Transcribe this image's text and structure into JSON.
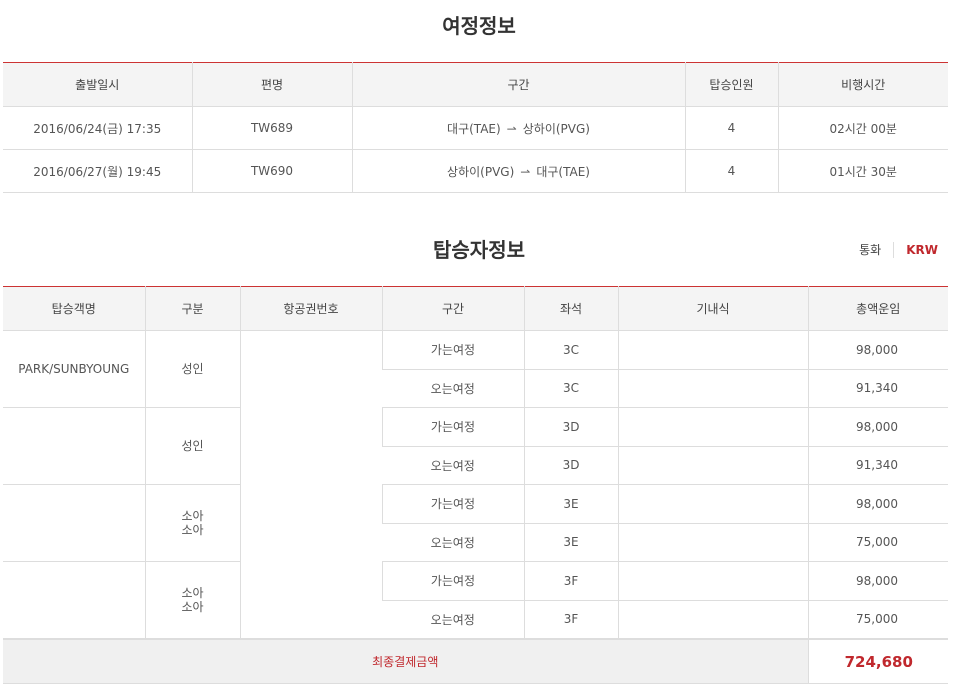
{
  "itinerary": {
    "title": "여정정보",
    "headers": [
      "출발일시",
      "편명",
      "구간",
      "탑승인원",
      "비행시간"
    ],
    "rows": [
      {
        "datetime": "2016/06/24(금) 17:35",
        "flight": "TW689",
        "from": "대구(TAE)",
        "to": "상하이(PVG)",
        "pax": "4",
        "duration": "02시간 00분"
      },
      {
        "datetime": "2016/06/27(월) 19:45",
        "flight": "TW690",
        "from": "상하이(PVG)",
        "to": "대구(TAE)",
        "pax": "4",
        "duration": "01시간 30분"
      }
    ]
  },
  "passengers": {
    "title": "탑승자정보",
    "currency_label": "통화",
    "currency_value": "KRW",
    "headers": [
      "탑승객명",
      "구분",
      "항공권번호",
      "구간",
      "좌석",
      "기내식",
      "총액운임"
    ],
    "groups": [
      {
        "name": "PARK/SUNBYOUNG",
        "type": "성인",
        "legs": [
          {
            "segment": "가는여정",
            "seat": "3C",
            "fare": "98,000"
          },
          {
            "segment": "오는여정",
            "seat": "3C",
            "fare": "91,340"
          }
        ]
      },
      {
        "name": "",
        "type": "성인",
        "legs": [
          {
            "segment": "가는여정",
            "seat": "3D",
            "fare": "98,000"
          },
          {
            "segment": "오는여정",
            "seat": "3D",
            "fare": "91,340"
          }
        ]
      },
      {
        "name": "",
        "type": "소아\n소아",
        "legs": [
          {
            "segment": "가는여정",
            "seat": "3E",
            "fare": "98,000"
          },
          {
            "segment": "오는여정",
            "seat": "3E",
            "fare": "75,000"
          }
        ]
      },
      {
        "name": "",
        "type": "소아\n소아",
        "legs": [
          {
            "segment": "가는여정",
            "seat": "3F",
            "fare": "98,000"
          },
          {
            "segment": "오는여정",
            "seat": "3F",
            "fare": "75,000"
          }
        ]
      }
    ],
    "total_label": "최종결제금액",
    "total_value": "724,680"
  },
  "colors": {
    "accent": "#c0282d",
    "header_bg": "#f4f4f4"
  }
}
